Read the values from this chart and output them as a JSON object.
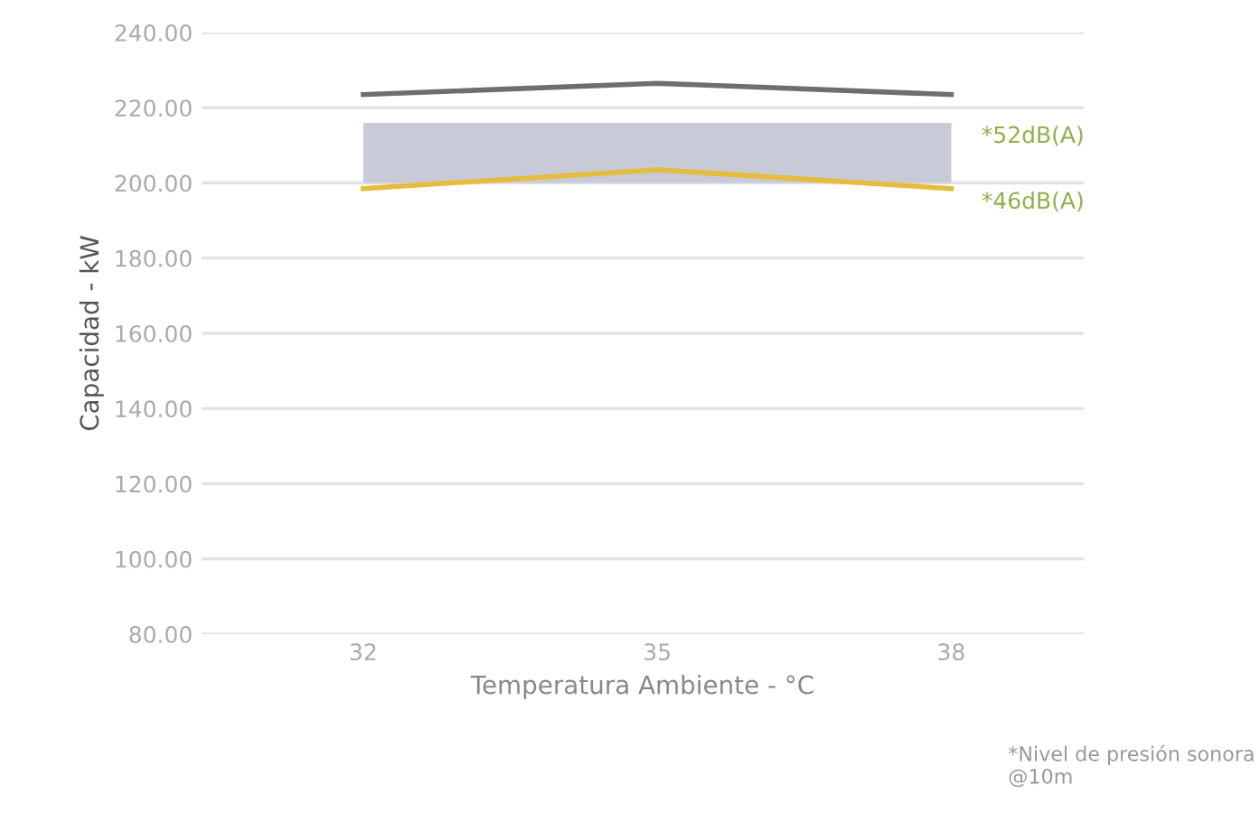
{
  "chart_data": {
    "type": "line",
    "xlabel": "Temperatura Ambiente - °C",
    "ylabel": "Capacidad - kW",
    "categories": [
      "32",
      "35",
      "38"
    ],
    "series": [
      {
        "color": "#6e6e6e",
        "values": [
          223.5,
          226.5,
          223.5
        ]
      },
      {
        "color": "#e6bc3c",
        "values": [
          198.5,
          203.5,
          198.5
        ],
        "lower": [
          200,
          200,
          200
        ],
        "upper": [
          216,
          216,
          216
        ]
      }
    ],
    "ylim": [
      80,
      240
    ],
    "yticks": [
      {
        "value": 80,
        "label": "80.00"
      },
      {
        "value": 100,
        "label": "100.00"
      },
      {
        "value": 120,
        "label": "120.00"
      },
      {
        "value": 140,
        "label": "140.00"
      },
      {
        "value": 160,
        "label": "160.00"
      },
      {
        "value": 180,
        "label": "180.00"
      },
      {
        "value": 200,
        "label": "200.00"
      },
      {
        "value": 220,
        "label": "220.00"
      },
      {
        "value": 240,
        "label": "240.00"
      }
    ],
    "grid": "y",
    "legend": false,
    "marker": "none",
    "line_style": "solid",
    "annotations": [
      {
        "text": "*52dB(A)",
        "x": "38",
        "y": 216
      },
      {
        "text": "*46dB(A)",
        "x": "38",
        "y": 198.5
      },
      "*Nivel de presión sonora @10m"
    ]
  }
}
